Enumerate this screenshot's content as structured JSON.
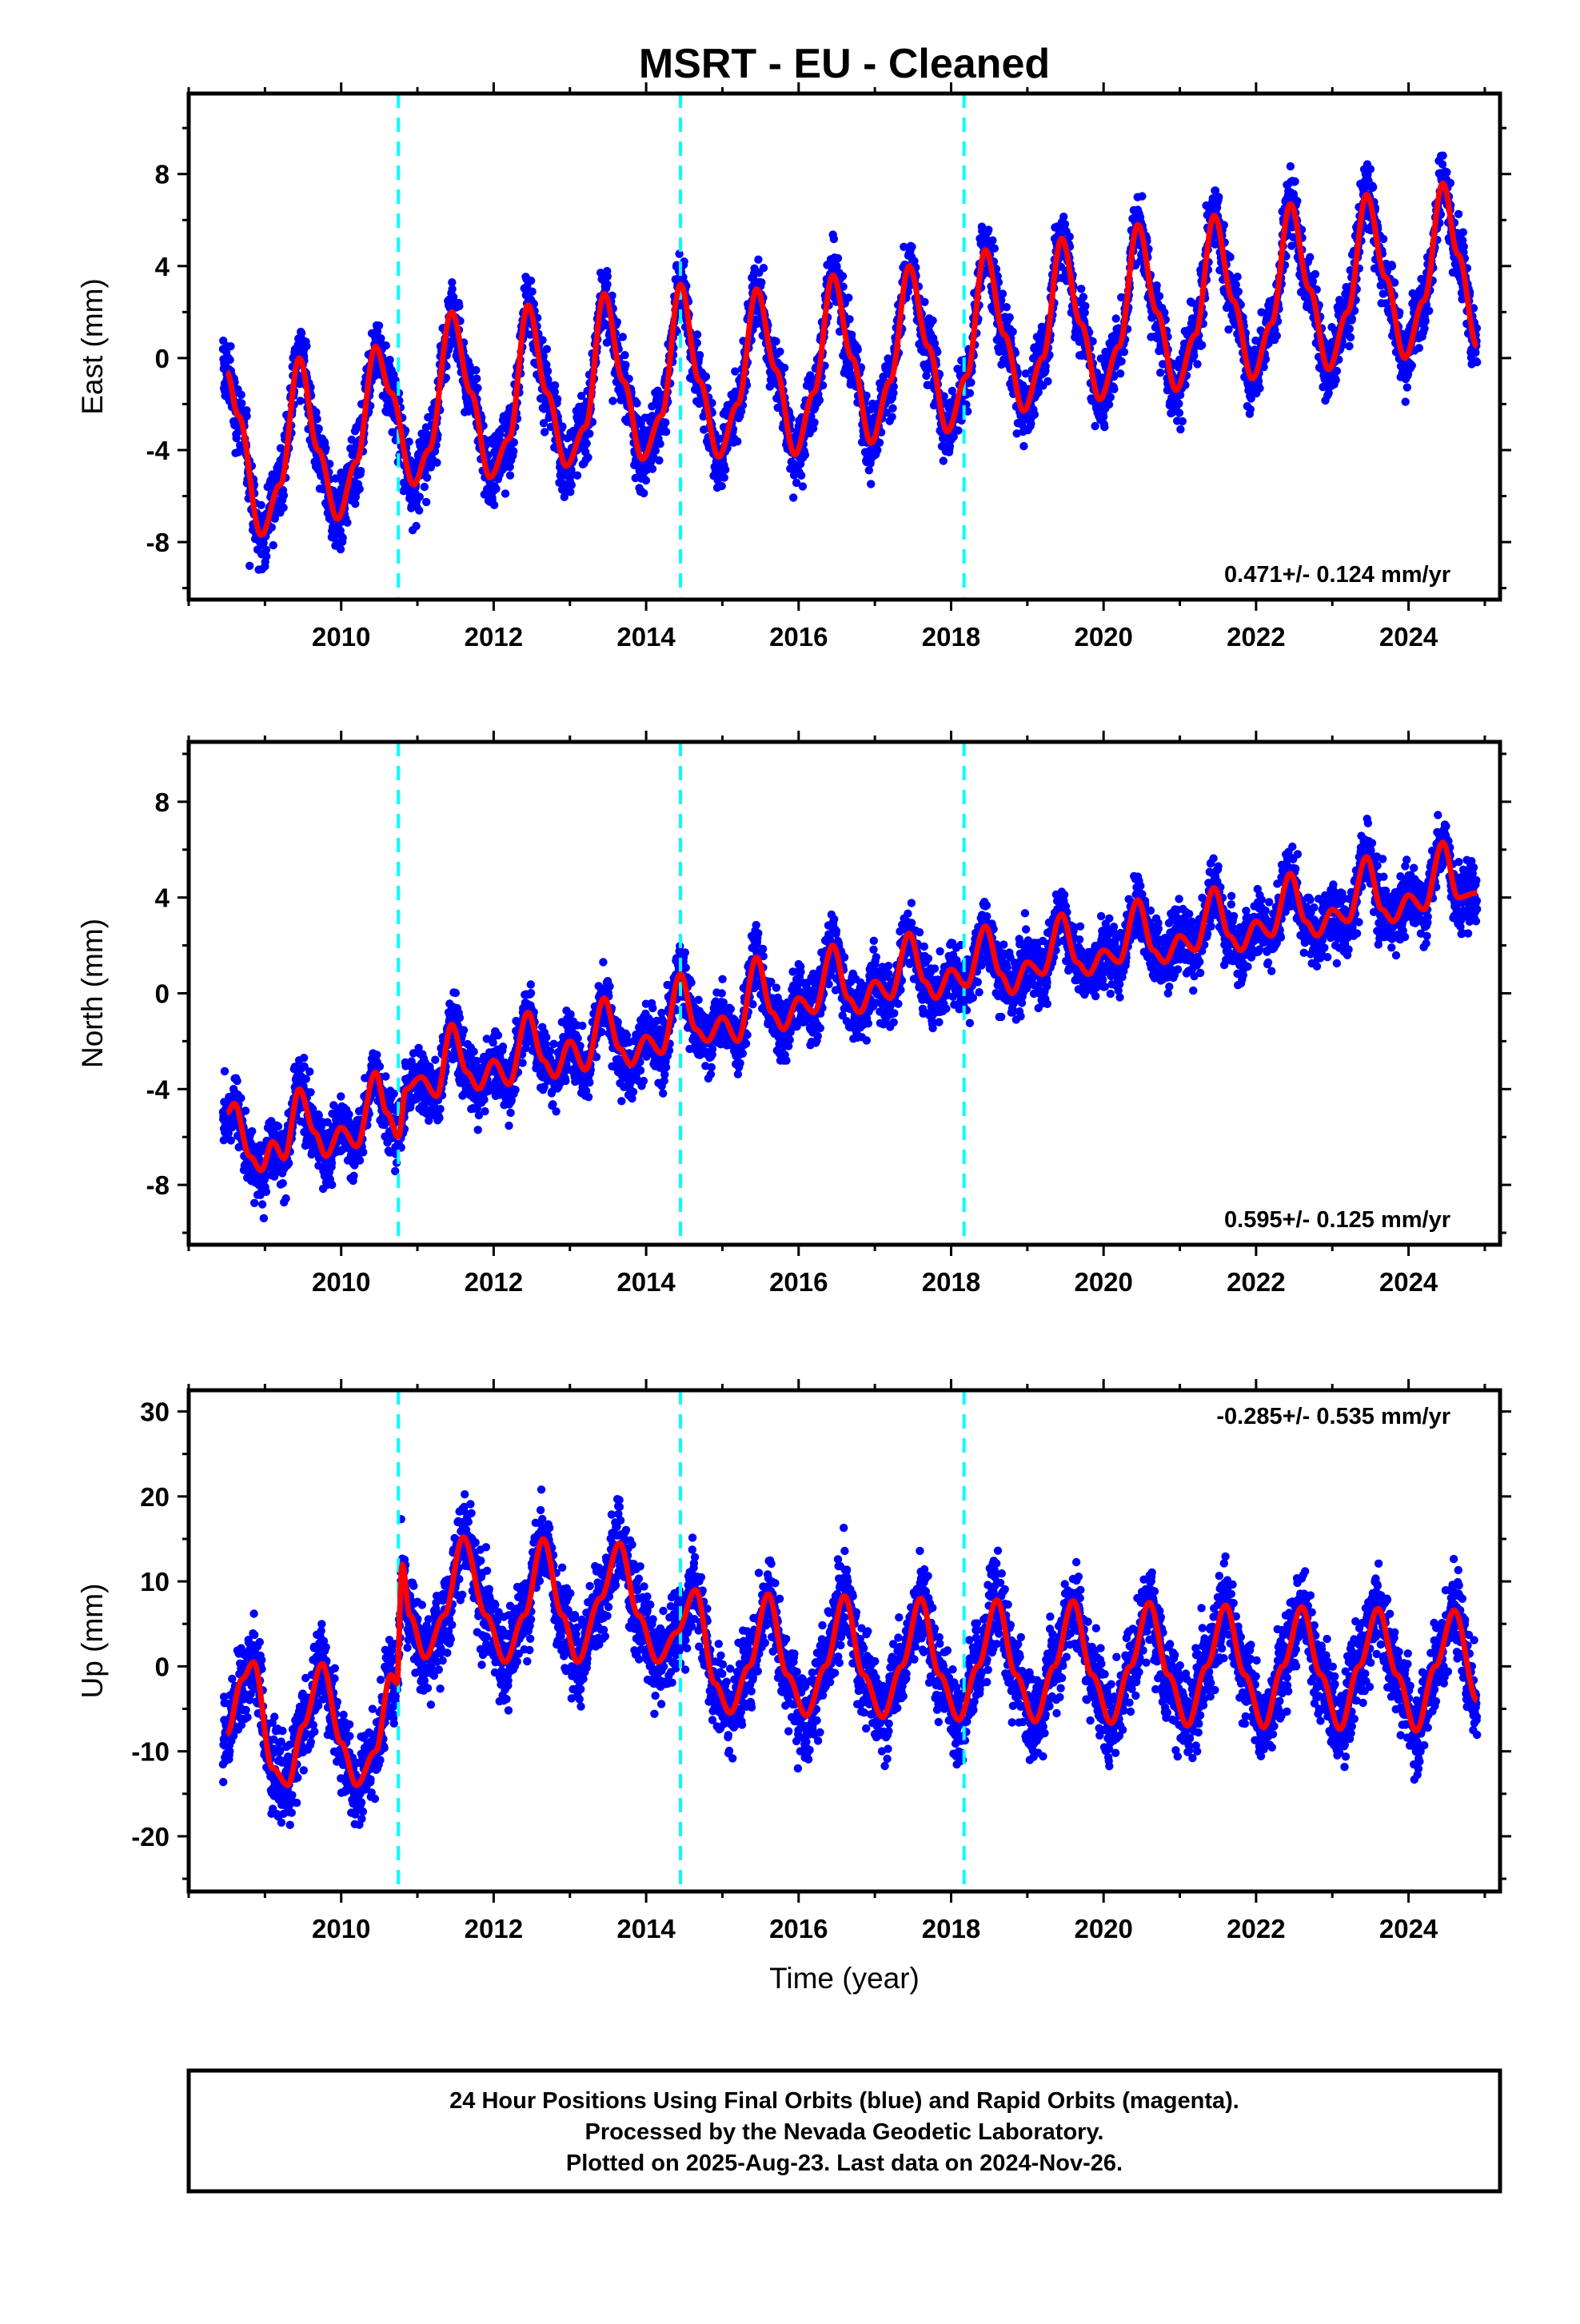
{
  "title": "MSRT  - EU - Cleaned",
  "xlabel": "Time (year)",
  "caption": [
    "24 Hour Positions Using Final Orbits (blue) and Rapid Orbits (magenta).",
    "Processed by the Nevada Geodetic Laboratory.",
    "Plotted on 2025-Aug-23. Last data on 2024-Nov-26."
  ],
  "colors": {
    "observations": "#0000ff",
    "model": "#ff0000",
    "events": "#00ffff",
    "frame": "#000000"
  },
  "chart_data": [
    {
      "type": "scatter",
      "panel": "east",
      "ylabel": "East (mm)",
      "xlim": [
        2008.0,
        2025.2
      ],
      "ylim": [
        -10.5,
        11.5
      ],
      "xticks": [
        2010,
        2012,
        2014,
        2016,
        2018,
        2020,
        2022,
        2024
      ],
      "yticks": [
        -8,
        -4,
        0,
        4,
        8
      ],
      "event_lines": [
        2010.75,
        2014.45,
        2018.17
      ],
      "rate_label": "0.471+/- 0.124 mm/yr",
      "rate_label_position": "bottom-right",
      "data_span": [
        2008.45,
        2024.9
      ],
      "model_curve": [
        [
          2008.5,
          -0.6
        ],
        [
          2008.65,
          -2.5
        ],
        [
          2008.95,
          -7.7
        ],
        [
          2009.2,
          -5.5
        ],
        [
          2009.45,
          0.0
        ],
        [
          2009.7,
          -4.0
        ],
        [
          2009.95,
          -7.0
        ],
        [
          2010.2,
          -4.5
        ],
        [
          2010.45,
          0.5
        ],
        [
          2010.65,
          -1.5
        ],
        [
          2010.95,
          -5.5
        ],
        [
          2011.15,
          -4.0
        ],
        [
          2011.45,
          2.0
        ],
        [
          2011.7,
          -1.5
        ],
        [
          2011.95,
          -5.2
        ],
        [
          2012.2,
          -3.5
        ],
        [
          2012.45,
          2.3
        ],
        [
          2012.7,
          -1.5
        ],
        [
          2012.95,
          -4.7
        ],
        [
          2013.2,
          -3.0
        ],
        [
          2013.45,
          2.8
        ],
        [
          2013.7,
          -1.0
        ],
        [
          2013.95,
          -4.4
        ],
        [
          2014.2,
          -2.5
        ],
        [
          2014.45,
          3.2
        ],
        [
          2014.7,
          -1.0
        ],
        [
          2014.95,
          -4.3
        ],
        [
          2015.2,
          -2.0
        ],
        [
          2015.45,
          3.0
        ],
        [
          2015.7,
          -0.5
        ],
        [
          2015.95,
          -4.2
        ],
        [
          2016.2,
          -1.5
        ],
        [
          2016.45,
          3.6
        ],
        [
          2016.7,
          0.0
        ],
        [
          2016.95,
          -3.7
        ],
        [
          2017.2,
          -1.0
        ],
        [
          2017.45,
          4.0
        ],
        [
          2017.7,
          0.5
        ],
        [
          2017.95,
          -3.2
        ],
        [
          2018.2,
          -0.8
        ],
        [
          2018.45,
          4.7
        ],
        [
          2018.7,
          1.0
        ],
        [
          2018.95,
          -2.3
        ],
        [
          2019.2,
          0.0
        ],
        [
          2019.45,
          5.2
        ],
        [
          2019.7,
          1.5
        ],
        [
          2019.95,
          -1.8
        ],
        [
          2020.2,
          0.5
        ],
        [
          2020.45,
          5.8
        ],
        [
          2020.7,
          2.0
        ],
        [
          2020.95,
          -1.4
        ],
        [
          2021.2,
          1.0
        ],
        [
          2021.45,
          6.2
        ],
        [
          2021.7,
          2.5
        ],
        [
          2021.95,
          -0.9
        ],
        [
          2022.2,
          1.5
        ],
        [
          2022.45,
          6.7
        ],
        [
          2022.7,
          3.0
        ],
        [
          2022.95,
          -0.5
        ],
        [
          2023.2,
          2.0
        ],
        [
          2023.45,
          7.1
        ],
        [
          2023.7,
          3.5
        ],
        [
          2023.95,
          0.0
        ],
        [
          2024.2,
          2.5
        ],
        [
          2024.45,
          7.6
        ],
        [
          2024.65,
          4.5
        ],
        [
          2024.9,
          0.5
        ]
      ]
    },
    {
      "type": "scatter",
      "panel": "north",
      "ylabel": "North (mm)",
      "xlim": [
        2008.0,
        2025.2
      ],
      "ylim": [
        -10.5,
        10.5
      ],
      "xticks": [
        2010,
        2012,
        2014,
        2016,
        2018,
        2020,
        2022,
        2024
      ],
      "yticks": [
        -8,
        -4,
        0,
        4,
        8
      ],
      "event_lines": [
        2010.75,
        2014.45,
        2018.17
      ],
      "rate_label": "0.595+/- 0.125 mm/yr",
      "rate_label_position": "bottom-right",
      "data_span": [
        2008.45,
        2024.9
      ],
      "model_curve": [
        [
          2008.5,
          -5.0
        ],
        [
          2008.6,
          -4.6
        ],
        [
          2008.8,
          -6.8
        ],
        [
          2008.95,
          -7.4
        ],
        [
          2009.1,
          -6.2
        ],
        [
          2009.25,
          -6.9
        ],
        [
          2009.45,
          -4.0
        ],
        [
          2009.65,
          -5.8
        ],
        [
          2009.8,
          -6.8
        ],
        [
          2010.0,
          -5.6
        ],
        [
          2010.2,
          -6.4
        ],
        [
          2010.45,
          -3.3
        ],
        [
          2010.6,
          -5.0
        ],
        [
          2010.75,
          -6.0
        ],
        [
          2010.85,
          -4.0
        ],
        [
          2011.05,
          -3.5
        ],
        [
          2011.25,
          -4.3
        ],
        [
          2011.45,
          -1.3
        ],
        [
          2011.65,
          -3.3
        ],
        [
          2011.8,
          -4.0
        ],
        [
          2012.0,
          -2.8
        ],
        [
          2012.2,
          -3.8
        ],
        [
          2012.45,
          -0.8
        ],
        [
          2012.65,
          -2.8
        ],
        [
          2012.8,
          -3.5
        ],
        [
          2013.0,
          -2.0
        ],
        [
          2013.2,
          -3.2
        ],
        [
          2013.45,
          -0.2
        ],
        [
          2013.65,
          -2.3
        ],
        [
          2013.8,
          -3.0
        ],
        [
          2014.0,
          -1.8
        ],
        [
          2014.2,
          -2.5
        ],
        [
          2014.45,
          0.8
        ],
        [
          2014.65,
          -1.5
        ],
        [
          2014.8,
          -2.0
        ],
        [
          2015.0,
          -1.0
        ],
        [
          2015.2,
          -2.0
        ],
        [
          2015.45,
          1.5
        ],
        [
          2015.65,
          -0.8
        ],
        [
          2015.8,
          -1.5
        ],
        [
          2016.0,
          -0.2
        ],
        [
          2016.2,
          -0.8
        ],
        [
          2016.45,
          2.0
        ],
        [
          2016.65,
          -0.2
        ],
        [
          2016.8,
          -0.8
        ],
        [
          2017.0,
          0.5
        ],
        [
          2017.2,
          -0.2
        ],
        [
          2017.45,
          2.5
        ],
        [
          2017.65,
          0.5
        ],
        [
          2017.8,
          -0.2
        ],
        [
          2018.0,
          1.0
        ],
        [
          2018.2,
          0.3
        ],
        [
          2018.45,
          2.8
        ],
        [
          2018.65,
          0.8
        ],
        [
          2018.8,
          0.0
        ],
        [
          2019.0,
          1.3
        ],
        [
          2019.2,
          0.8
        ],
        [
          2019.45,
          3.3
        ],
        [
          2019.65,
          1.3
        ],
        [
          2019.8,
          0.8
        ],
        [
          2020.0,
          1.8
        ],
        [
          2020.2,
          1.3
        ],
        [
          2020.45,
          3.9
        ],
        [
          2020.65,
          1.8
        ],
        [
          2020.8,
          1.3
        ],
        [
          2021.0,
          2.4
        ],
        [
          2021.2,
          1.8
        ],
        [
          2021.45,
          4.4
        ],
        [
          2021.65,
          2.4
        ],
        [
          2021.8,
          1.8
        ],
        [
          2022.0,
          3.0
        ],
        [
          2022.2,
          2.4
        ],
        [
          2022.45,
          5.0
        ],
        [
          2022.65,
          3.0
        ],
        [
          2022.8,
          2.4
        ],
        [
          2023.0,
          3.5
        ],
        [
          2023.2,
          3.0
        ],
        [
          2023.45,
          5.7
        ],
        [
          2023.65,
          3.5
        ],
        [
          2023.8,
          3.0
        ],
        [
          2024.0,
          4.1
        ],
        [
          2024.2,
          3.5
        ],
        [
          2024.45,
          6.3
        ],
        [
          2024.65,
          4.0
        ],
        [
          2024.9,
          4.2
        ]
      ]
    },
    {
      "type": "scatter",
      "panel": "up",
      "ylabel": "Up (mm)",
      "xlim": [
        2008.0,
        2025.2
      ],
      "ylim": [
        -26.5,
        32.5
      ],
      "xticks": [
        2010,
        2012,
        2014,
        2016,
        2018,
        2020,
        2022,
        2024
      ],
      "yticks": [
        -20,
        -10,
        0,
        10,
        20,
        30
      ],
      "event_lines": [
        2010.75,
        2014.45,
        2018.17
      ],
      "rate_label": "-0.285+/- 0.535 mm/yr",
      "rate_label_position": "top-right",
      "data_span": [
        2008.45,
        2024.9
      ],
      "model_curve": [
        [
          2008.5,
          -8.0
        ],
        [
          2008.7,
          -1.5
        ],
        [
          2008.85,
          0.5
        ],
        [
          2009.1,
          -12.0
        ],
        [
          2009.3,
          -14.0
        ],
        [
          2009.5,
          -7.0
        ],
        [
          2009.75,
          0.3
        ],
        [
          2010.0,
          -9.0
        ],
        [
          2010.2,
          -14.0
        ],
        [
          2010.45,
          -10.0
        ],
        [
          2010.65,
          -1.0
        ],
        [
          2010.73,
          -2.0
        ],
        [
          2010.8,
          12.0
        ],
        [
          2010.9,
          6.0
        ],
        [
          2011.1,
          1.0
        ],
        [
          2011.35,
          6.0
        ],
        [
          2011.6,
          15.2
        ],
        [
          2011.9,
          6.0
        ],
        [
          2012.15,
          0.5
        ],
        [
          2012.4,
          6.0
        ],
        [
          2012.65,
          15.0
        ],
        [
          2012.9,
          6.0
        ],
        [
          2013.1,
          0.5
        ],
        [
          2013.4,
          8.0
        ],
        [
          2013.65,
          14.5
        ],
        [
          2013.9,
          6.0
        ],
        [
          2014.15,
          0.5
        ],
        [
          2014.4,
          4.0
        ],
        [
          2014.65,
          9.0
        ],
        [
          2014.9,
          -2.0
        ],
        [
          2015.1,
          -5.5
        ],
        [
          2015.35,
          0.0
        ],
        [
          2015.6,
          8.5
        ],
        [
          2015.85,
          -1.0
        ],
        [
          2016.1,
          -5.8
        ],
        [
          2016.35,
          0.0
        ],
        [
          2016.6,
          8.3
        ],
        [
          2016.85,
          -1.0
        ],
        [
          2017.1,
          -6.0
        ],
        [
          2017.35,
          0.0
        ],
        [
          2017.6,
          8.0
        ],
        [
          2017.85,
          -1.0
        ],
        [
          2018.1,
          -6.3
        ],
        [
          2018.35,
          0.0
        ],
        [
          2018.6,
          7.8
        ],
        [
          2018.85,
          -1.0
        ],
        [
          2019.1,
          -6.5
        ],
        [
          2019.35,
          0.0
        ],
        [
          2019.6,
          7.7
        ],
        [
          2019.85,
          -1.0
        ],
        [
          2020.1,
          -6.7
        ],
        [
          2020.35,
          0.0
        ],
        [
          2020.6,
          7.5
        ],
        [
          2020.85,
          -1.0
        ],
        [
          2021.1,
          -7.0
        ],
        [
          2021.35,
          0.0
        ],
        [
          2021.6,
          7.2
        ],
        [
          2021.85,
          -1.0
        ],
        [
          2022.1,
          -7.2
        ],
        [
          2022.35,
          0.0
        ],
        [
          2022.6,
          7.0
        ],
        [
          2022.85,
          -1.0
        ],
        [
          2023.1,
          -7.4
        ],
        [
          2023.35,
          0.0
        ],
        [
          2023.6,
          6.8
        ],
        [
          2023.85,
          -1.0
        ],
        [
          2024.1,
          -7.6
        ],
        [
          2024.35,
          0.0
        ],
        [
          2024.6,
          6.6
        ],
        [
          2024.9,
          -4.0
        ]
      ]
    }
  ]
}
